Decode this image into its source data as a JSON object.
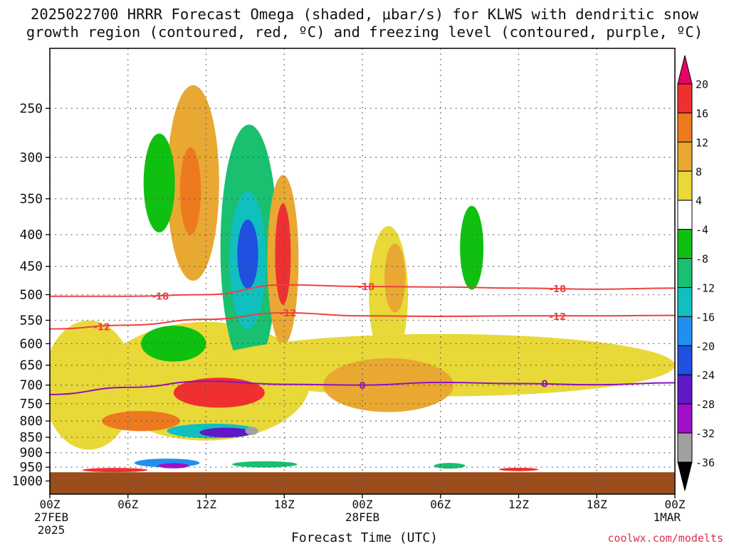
{
  "title_line1": "2025022700 HRRR Forecast Omega (shaded, μbar/s) for KLWS with dendritic snow",
  "title_line2": "growth region (contoured, red, ºC) and freezing level (contoured, purple, ºC)",
  "credit": "coolwx.com/modelts",
  "chart_data": {
    "type": "heatmap",
    "title": "2025022700 HRRR Forecast Omega (shaded, μbar/s) for KLWS with dendritic snow growth region (contoured, red, ºC) and freezing level (contoured, purple, ºC)",
    "xlabel": "Forecast Time (UTC)",
    "ylabel": "",
    "x_ticks": [
      {
        "hour": 0,
        "label": [
          "00Z",
          "27FEB",
          "2025"
        ]
      },
      {
        "hour": 6,
        "label": [
          "06Z"
        ]
      },
      {
        "hour": 12,
        "label": [
          "12Z"
        ]
      },
      {
        "hour": 18,
        "label": [
          "18Z"
        ]
      },
      {
        "hour": 24,
        "label": [
          "00Z",
          "28FEB"
        ]
      },
      {
        "hour": 30,
        "label": [
          "06Z"
        ]
      },
      {
        "hour": 36,
        "label": [
          "12Z"
        ]
      },
      {
        "hour": 42,
        "label": [
          "18Z"
        ]
      },
      {
        "hour": 48,
        "label": [
          "00Z",
          "1MAR"
        ]
      }
    ],
    "xlim": [
      0,
      48
    ],
    "y_ticks": [
      "250",
      "300",
      "350",
      "400",
      "450",
      "500",
      "550",
      "600",
      "650",
      "700",
      "750",
      "800",
      "850",
      "900",
      "950",
      "1000"
    ],
    "ylim": [
      1050,
      200
    ],
    "y_scale": "log-pressure",
    "grid": true,
    "colorbar": {
      "labels": [
        "20",
        "16",
        "12",
        "8",
        "4",
        "-4",
        "-8",
        "-12",
        "-16",
        "-20",
        "-24",
        "-28",
        "-32",
        "-36"
      ],
      "colors": [
        "#e8006a",
        "#f03030",
        "#ee7a20",
        "#e8a832",
        "#e8d838",
        "#ffffff",
        "#10c010",
        "#18c070",
        "#10c0c0",
        "#2090f0",
        "#2050e0",
        "#6018c8",
        "#a010c8",
        "#a0a0a0",
        "#000000"
      ]
    },
    "contours": [
      {
        "name": "-18",
        "color": "#f04040",
        "points": [
          [
            0,
            503
          ],
          [
            6,
            503
          ],
          [
            12,
            500
          ],
          [
            18,
            482
          ],
          [
            24,
            485
          ],
          [
            30,
            486
          ],
          [
            36,
            488
          ],
          [
            42,
            490
          ],
          [
            48,
            488
          ]
        ]
      },
      {
        "name": "-12",
        "color": "#f04040",
        "points": [
          [
            0,
            568
          ],
          [
            6,
            560
          ],
          [
            12,
            548
          ],
          [
            18,
            535
          ],
          [
            24,
            541
          ],
          [
            30,
            542
          ],
          [
            36,
            541
          ],
          [
            42,
            541
          ],
          [
            48,
            540
          ]
        ]
      },
      {
        "name": "0",
        "color": "#9010c0",
        "points": [
          [
            0,
            725
          ],
          [
            6,
            706
          ],
          [
            12,
            690
          ],
          [
            18,
            698
          ],
          [
            24,
            700
          ],
          [
            30,
            693
          ],
          [
            36,
            696
          ],
          [
            42,
            699
          ],
          [
            48,
            694
          ]
        ]
      }
    ],
    "contour_labels": [
      {
        "text": "-18",
        "hour": 8.5,
        "p": 503,
        "color": "#f04040"
      },
      {
        "text": "-12",
        "hour": 4,
        "p": 563,
        "color": "#f04040"
      },
      {
        "text": "-12",
        "hour": 18.3,
        "p": 535,
        "color": "#f04040"
      },
      {
        "text": "-18",
        "hour": 24.3,
        "p": 485,
        "color": "#f04040"
      },
      {
        "text": "-18",
        "hour": 39,
        "p": 489,
        "color": "#f04040"
      },
      {
        "text": "-12",
        "hour": 39,
        "p": 542,
        "color": "#f04040"
      },
      {
        "text": "0",
        "hour": 24,
        "p": 701,
        "color": "#9010c0"
      },
      {
        "text": "0",
        "hour": 38,
        "p": 696,
        "color": "#9010c0"
      }
    ],
    "omega_blobs": [
      {
        "hour": 3,
        "p": 700,
        "rx": 3.5,
        "rp": 330,
        "value": 6
      },
      {
        "hour": 12,
        "p": 690,
        "rx": 8,
        "rp": 300,
        "value": 6
      },
      {
        "hour": 11,
        "p": 330,
        "rx": 2,
        "rp": 230,
        "value": 8
      },
      {
        "hour": 10.8,
        "p": 340,
        "rx": 0.8,
        "rp": 110,
        "value": 12
      },
      {
        "hour": 8.4,
        "p": 330,
        "rx": 1.2,
        "rp": 120,
        "value": -8
      },
      {
        "hour": 15.3,
        "p": 420,
        "rx": 2.2,
        "rp": 360,
        "value": -10
      },
      {
        "hour": 15.2,
        "p": 440,
        "rx": 1.4,
        "rp": 220,
        "value": -16
      },
      {
        "hour": 15.2,
        "p": 430,
        "rx": 0.8,
        "rp": 110,
        "value": -22
      },
      {
        "hour": 9.5,
        "p": 600,
        "rx": 2.5,
        "rp": 80,
        "value": -8
      },
      {
        "hour": 17.9,
        "p": 440,
        "rx": 1.2,
        "rp": 270,
        "value": 10
      },
      {
        "hour": 17.9,
        "p": 430,
        "rx": 0.6,
        "rp": 160,
        "value": 18
      },
      {
        "hour": 26,
        "p": 500,
        "rx": 1.5,
        "rp": 250,
        "value": 6
      },
      {
        "hour": 26.5,
        "p": 470,
        "rx": 0.8,
        "rp": 120,
        "value": 9
      },
      {
        "hour": 32.4,
        "p": 420,
        "rx": 0.9,
        "rp": 130,
        "value": -8
      },
      {
        "hour": 30,
        "p": 650,
        "rx": 18,
        "rp": 150,
        "value": 6
      },
      {
        "hour": 26,
        "p": 700,
        "rx": 5,
        "rp": 140,
        "value": 9
      },
      {
        "hour": 13,
        "p": 720,
        "rx": 3.5,
        "rp": 80,
        "value": 16
      },
      {
        "hour": 7,
        "p": 800,
        "rx": 3,
        "rp": 60,
        "value": 13
      },
      {
        "hour": 12.5,
        "p": 830,
        "rx": 3.5,
        "rp": 45,
        "value": -14
      },
      {
        "hour": 13.5,
        "p": 835,
        "rx": 2,
        "rp": 30,
        "value": -26
      },
      {
        "hour": 15.5,
        "p": 830,
        "rx": 0.5,
        "rp": 25,
        "value": -36
      },
      {
        "hour": 9,
        "p": 935,
        "rx": 2.5,
        "rp": 30,
        "value": -20
      },
      {
        "hour": 9.5,
        "p": 945,
        "rx": 1.2,
        "rp": 18,
        "value": -30
      },
      {
        "hour": 16.5,
        "p": 940,
        "rx": 2.5,
        "rp": 22,
        "value": -12
      },
      {
        "hour": 30.7,
        "p": 945,
        "rx": 1.2,
        "rp": 20,
        "value": -12
      },
      {
        "hour": 5,
        "p": 960,
        "rx": 2.5,
        "rp": 15,
        "value": 18
      },
      {
        "hour": 36,
        "p": 958,
        "rx": 1.5,
        "rp": 12,
        "value": 18
      }
    ]
  }
}
